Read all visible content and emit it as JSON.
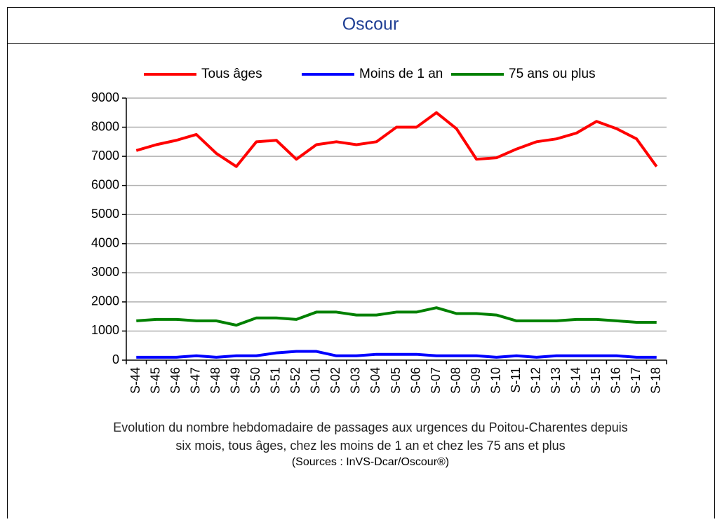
{
  "header": {
    "title": "Oscour"
  },
  "chart_data": {
    "type": "line",
    "categories": [
      "S-44",
      "S-45",
      "S-46",
      "S-47",
      "S-48",
      "S-49",
      "S-50",
      "S-51",
      "S-52",
      "S-01",
      "S-02",
      "S-03",
      "S-04",
      "S-05",
      "S-06",
      "S-07",
      "S-08",
      "S-09",
      "S-10",
      "S-11",
      "S-12",
      "S-13",
      "S-14",
      "S-15",
      "S-16",
      "S-17",
      "S-18"
    ],
    "series": [
      {
        "name": "Tous âges",
        "color": "#ff0000",
        "values": [
          7200,
          7400,
          7550,
          7750,
          7100,
          6650,
          7500,
          7550,
          6900,
          7400,
          7500,
          7400,
          7500,
          8000,
          8000,
          8500,
          7950,
          6900,
          6950,
          7250,
          7500,
          7600,
          7800,
          8200,
          7950,
          7600,
          6650
        ]
      },
      {
        "name": "Moins de 1 an",
        "color": "#0000ff",
        "values": [
          100,
          100,
          100,
          150,
          100,
          150,
          150,
          250,
          300,
          300,
          150,
          150,
          200,
          200,
          200,
          150,
          150,
          150,
          100,
          150,
          100,
          150,
          150,
          150,
          150,
          100,
          100
        ]
      },
      {
        "name": "75 ans ou plus",
        "color": "#008000",
        "values": [
          1350,
          1400,
          1400,
          1350,
          1350,
          1200,
          1450,
          1450,
          1400,
          1650,
          1650,
          1550,
          1550,
          1650,
          1650,
          1800,
          1600,
          1600,
          1550,
          1350,
          1350,
          1350,
          1400,
          1400,
          1350,
          1300,
          1300
        ]
      }
    ],
    "ylim": [
      0,
      9000
    ],
    "yticks": [
      0,
      1000,
      2000,
      3000,
      4000,
      5000,
      6000,
      7000,
      8000,
      9000
    ],
    "grid": true,
    "legend": "top",
    "caption": [
      "Evolution du nombre hebdomadaire de passages aux urgences du Poitou-Charentes depuis",
      "six mois, tous âges, chez les moins de 1 an et chez les 75 ans  et plus"
    ],
    "source": "(Sources : InVS-Dcar/Oscour®)"
  }
}
